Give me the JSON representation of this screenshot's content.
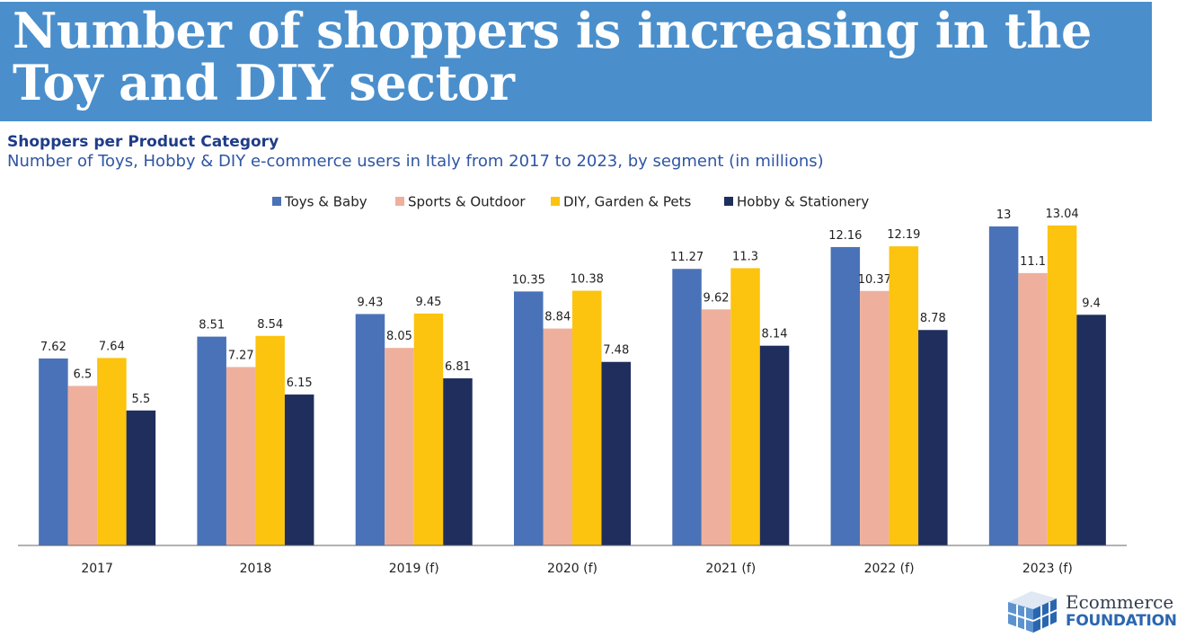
{
  "title": "Number of shoppers is increasing in the Toy and DIY sector",
  "chart_data": {
    "type": "bar",
    "title": "Shoppers per Product Category",
    "subtitle": "Number of Toys, Hobby & DIY e-commerce users in Italy from 2017 to 2023, by segment (in millions)",
    "categories": [
      "2017",
      "2018",
      "2019 (f)",
      "2020 (f)",
      "2021 (f)",
      "2022 (f)",
      "2023 (f)"
    ],
    "series": [
      {
        "name": "Toys & Baby",
        "color": "#4a72b8",
        "values": [
          7.62,
          8.51,
          9.43,
          10.35,
          11.27,
          12.16,
          13
        ]
      },
      {
        "name": "Sports & Outdoor",
        "color": "#eeb09d",
        "values": [
          6.5,
          7.27,
          8.05,
          8.84,
          9.62,
          10.37,
          11.1
        ]
      },
      {
        "name": "DIY, Garden & Pets",
        "color": "#fcc30f",
        "values": [
          7.64,
          8.54,
          9.45,
          10.38,
          11.3,
          12.19,
          13.04
        ]
      },
      {
        "name": "Hobby & Stationery",
        "color": "#1f2e5c",
        "values": [
          5.5,
          6.15,
          6.81,
          7.48,
          8.14,
          8.78,
          9.4
        ]
      }
    ],
    "ylim": [
      0,
      13
    ],
    "legend": "top",
    "grid": false,
    "data_labels": true
  },
  "logo": {
    "line1": "Ecommerce",
    "line2": "FOUNDATION"
  }
}
